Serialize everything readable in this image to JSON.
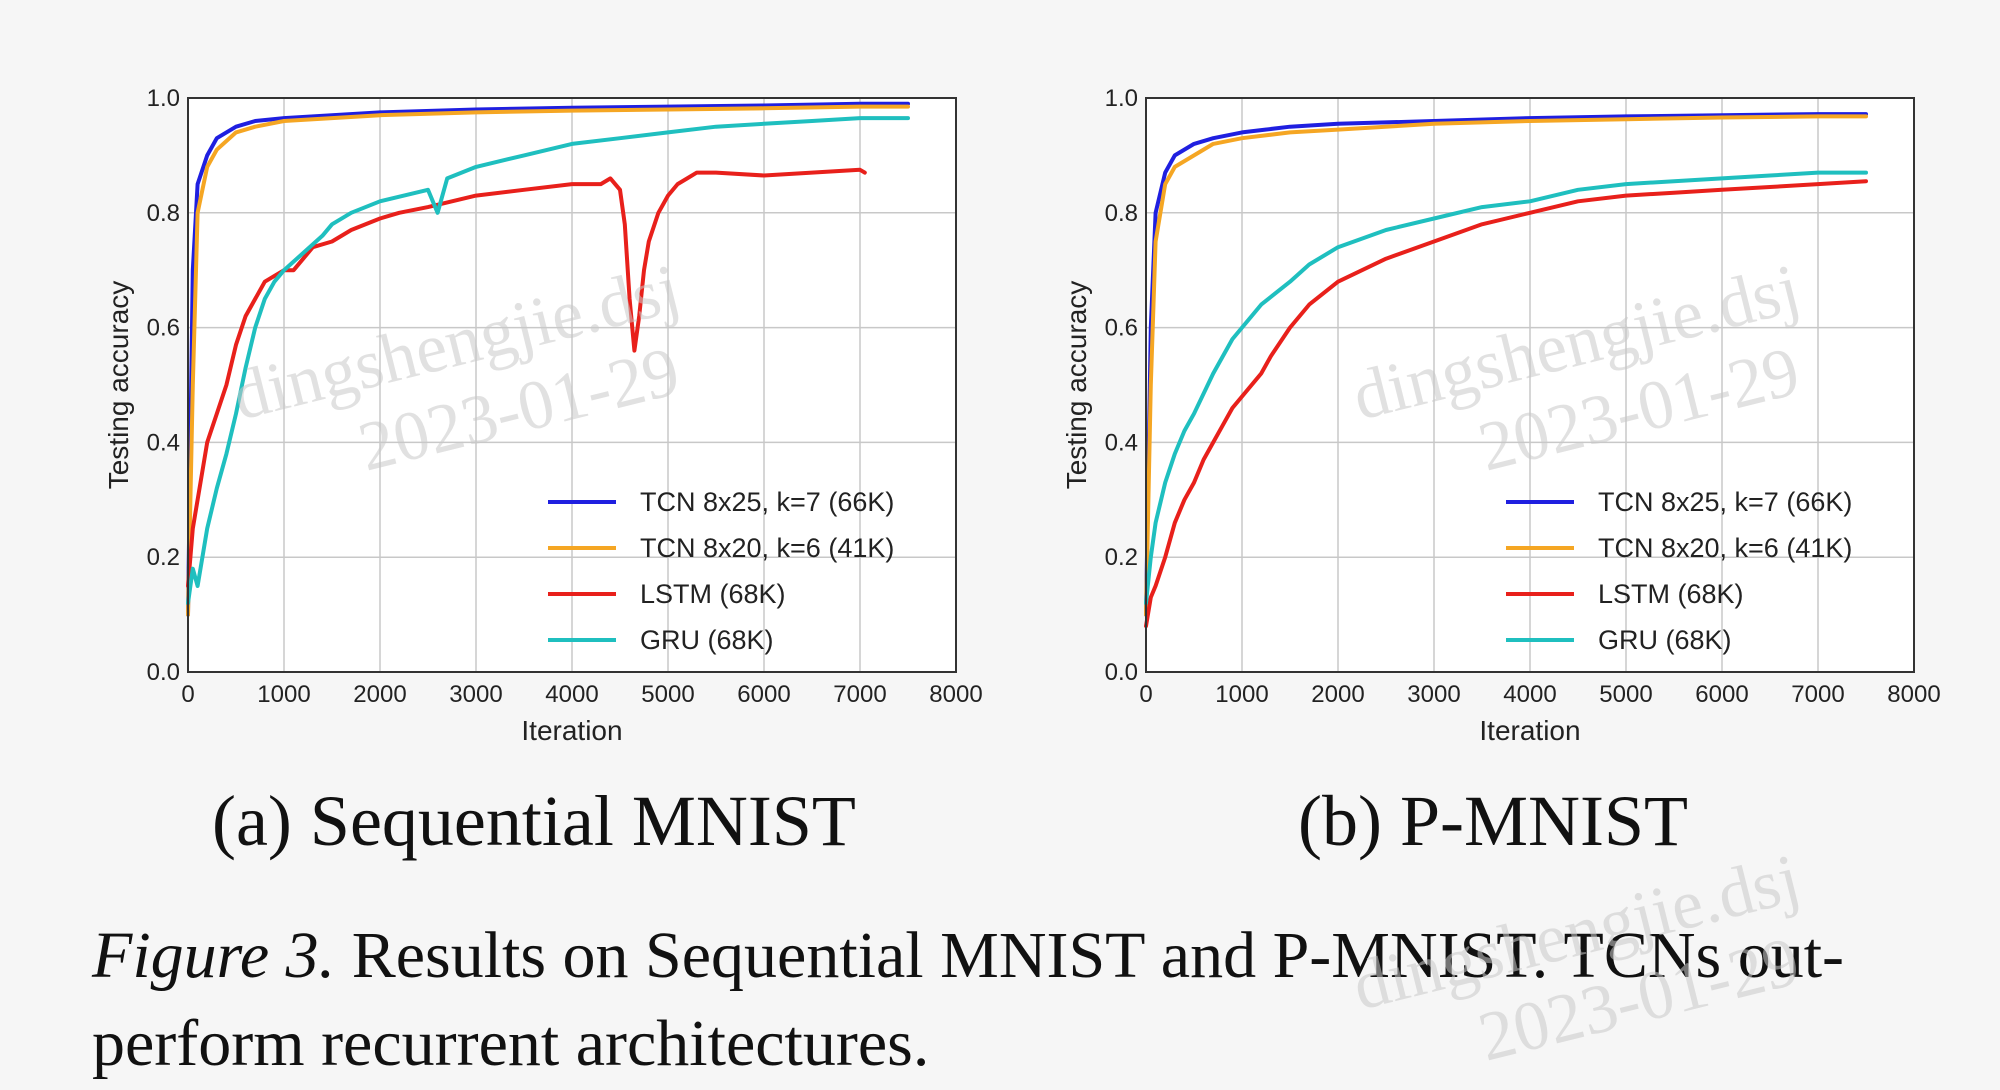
{
  "figure": {
    "subcaption_a": "(a) Sequential MNIST",
    "subcaption_b": "(b) P-MNIST",
    "caption_label": "Figure 3.",
    "caption_text": " Results on Sequential MNIST and P-MNIST. TCNs out-perform recurrent architectures."
  },
  "watermark": {
    "text": "dingshengjie.dsj",
    "date": "2023-01-29",
    "color": "#c9c9c9"
  },
  "chart_data": [
    {
      "type": "line",
      "title": "",
      "xlabel": "Iteration",
      "ylabel": "Testing accuracy",
      "xlim": [
        0,
        8000
      ],
      "ylim": [
        0.0,
        1.0
      ],
      "xticks": [
        "0",
        "1000",
        "2000",
        "3000",
        "4000",
        "5000",
        "6000",
        "7000",
        "8000"
      ],
      "yticks": [
        "0.0",
        "0.2",
        "0.4",
        "0.6",
        "0.8",
        "1.0"
      ],
      "grid": true,
      "legend_position": "lower-right",
      "series": [
        {
          "name": "TCN 8x25, k=7 (66K)",
          "color": "#1f1fe0",
          "x": [
            0,
            50,
            100,
            200,
            300,
            500,
            700,
            1000,
            1500,
            2000,
            3000,
            4000,
            5000,
            6000,
            7000,
            7500
          ],
          "y": [
            0.1,
            0.7,
            0.85,
            0.9,
            0.93,
            0.95,
            0.96,
            0.965,
            0.97,
            0.975,
            0.98,
            0.983,
            0.985,
            0.987,
            0.99,
            0.99
          ]
        },
        {
          "name": "TCN 8x20, k=6 (41K)",
          "color": "#f5a623",
          "x": [
            0,
            50,
            100,
            200,
            300,
            500,
            700,
            1000,
            1500,
            2000,
            3000,
            4000,
            5000,
            6000,
            7000,
            7500
          ],
          "y": [
            0.1,
            0.5,
            0.8,
            0.88,
            0.91,
            0.94,
            0.95,
            0.96,
            0.965,
            0.97,
            0.975,
            0.978,
            0.98,
            0.982,
            0.985,
            0.985
          ]
        },
        {
          "name": "LSTM (68K)",
          "color": "#e8201b",
          "x": [
            0,
            50,
            100,
            200,
            300,
            400,
            500,
            600,
            700,
            800,
            900,
            1000,
            1100,
            1200,
            1300,
            1500,
            1700,
            2000,
            2200,
            2500,
            3000,
            3500,
            4000,
            4300,
            4400,
            4500,
            4550,
            4600,
            4650,
            4700,
            4750,
            4800,
            4900,
            5000,
            5100,
            5200,
            5300,
            5500,
            6000,
            6500,
            7000,
            7050
          ],
          "y": [
            0.15,
            0.25,
            0.3,
            0.4,
            0.45,
            0.5,
            0.57,
            0.62,
            0.65,
            0.68,
            0.69,
            0.7,
            0.7,
            0.72,
            0.74,
            0.75,
            0.77,
            0.79,
            0.8,
            0.81,
            0.83,
            0.84,
            0.85,
            0.85,
            0.86,
            0.84,
            0.78,
            0.65,
            0.56,
            0.62,
            0.7,
            0.75,
            0.8,
            0.83,
            0.85,
            0.86,
            0.87,
            0.87,
            0.865,
            0.87,
            0.875,
            0.87
          ]
        },
        {
          "name": "GRU (68K)",
          "color": "#1fbfbf",
          "x": [
            0,
            50,
            100,
            200,
            300,
            400,
            500,
            600,
            700,
            800,
            900,
            1000,
            1200,
            1400,
            1500,
            1700,
            2000,
            2500,
            2600,
            2700,
            3000,
            3500,
            4000,
            4500,
            5000,
            5500,
            6000,
            6500,
            7000,
            7500
          ],
          "y": [
            0.12,
            0.18,
            0.15,
            0.25,
            0.32,
            0.38,
            0.45,
            0.53,
            0.6,
            0.65,
            0.68,
            0.7,
            0.73,
            0.76,
            0.78,
            0.8,
            0.82,
            0.84,
            0.8,
            0.86,
            0.88,
            0.9,
            0.92,
            0.93,
            0.94,
            0.95,
            0.955,
            0.96,
            0.965,
            0.965
          ]
        }
      ]
    },
    {
      "type": "line",
      "title": "",
      "xlabel": "Iteration",
      "ylabel": "Testing accuracy",
      "xlim": [
        0,
        8000
      ],
      "ylim": [
        0.0,
        1.0
      ],
      "xticks": [
        "0",
        "1000",
        "2000",
        "3000",
        "4000",
        "5000",
        "6000",
        "7000",
        "8000"
      ],
      "yticks": [
        "0.0",
        "0.2",
        "0.4",
        "0.6",
        "0.8",
        "1.0"
      ],
      "grid": true,
      "legend_position": "lower-right",
      "series": [
        {
          "name": "TCN 8x25, k=7 (66K)",
          "color": "#1f1fe0",
          "x": [
            0,
            50,
            100,
            200,
            300,
            500,
            700,
            1000,
            1500,
            2000,
            3000,
            4000,
            5000,
            6000,
            7000,
            7500
          ],
          "y": [
            0.1,
            0.6,
            0.8,
            0.87,
            0.9,
            0.92,
            0.93,
            0.94,
            0.95,
            0.955,
            0.96,
            0.965,
            0.968,
            0.97,
            0.972,
            0.972
          ]
        },
        {
          "name": "TCN 8x20, k=6 (41K)",
          "color": "#f5a623",
          "x": [
            0,
            50,
            100,
            200,
            300,
            500,
            700,
            1000,
            1500,
            2000,
            3000,
            4000,
            5000,
            6000,
            7000,
            7500
          ],
          "y": [
            0.1,
            0.5,
            0.75,
            0.85,
            0.88,
            0.9,
            0.92,
            0.93,
            0.94,
            0.945,
            0.955,
            0.96,
            0.963,
            0.966,
            0.968,
            0.968
          ]
        },
        {
          "name": "LSTM (68K)",
          "color": "#e8201b",
          "x": [
            0,
            50,
            100,
            200,
            300,
            400,
            500,
            600,
            700,
            800,
            900,
            1000,
            1100,
            1200,
            1300,
            1500,
            1700,
            2000,
            2500,
            3000,
            3500,
            4000,
            4500,
            5000,
            5500,
            6000,
            6500,
            7000,
            7500
          ],
          "y": [
            0.08,
            0.13,
            0.15,
            0.2,
            0.26,
            0.3,
            0.33,
            0.37,
            0.4,
            0.43,
            0.46,
            0.48,
            0.5,
            0.52,
            0.55,
            0.6,
            0.64,
            0.68,
            0.72,
            0.75,
            0.78,
            0.8,
            0.82,
            0.83,
            0.835,
            0.84,
            0.845,
            0.85,
            0.855
          ]
        },
        {
          "name": "GRU (68K)",
          "color": "#1fbfbf",
          "x": [
            0,
            50,
            100,
            200,
            300,
            400,
            500,
            700,
            900,
            1000,
            1200,
            1500,
            1700,
            2000,
            2500,
            3000,
            3500,
            4000,
            4500,
            5000,
            5500,
            6000,
            6500,
            7000,
            7500
          ],
          "y": [
            0.12,
            0.2,
            0.26,
            0.33,
            0.38,
            0.42,
            0.45,
            0.52,
            0.58,
            0.6,
            0.64,
            0.68,
            0.71,
            0.74,
            0.77,
            0.79,
            0.81,
            0.82,
            0.84,
            0.85,
            0.855,
            0.86,
            0.865,
            0.87,
            0.87
          ]
        }
      ]
    }
  ]
}
